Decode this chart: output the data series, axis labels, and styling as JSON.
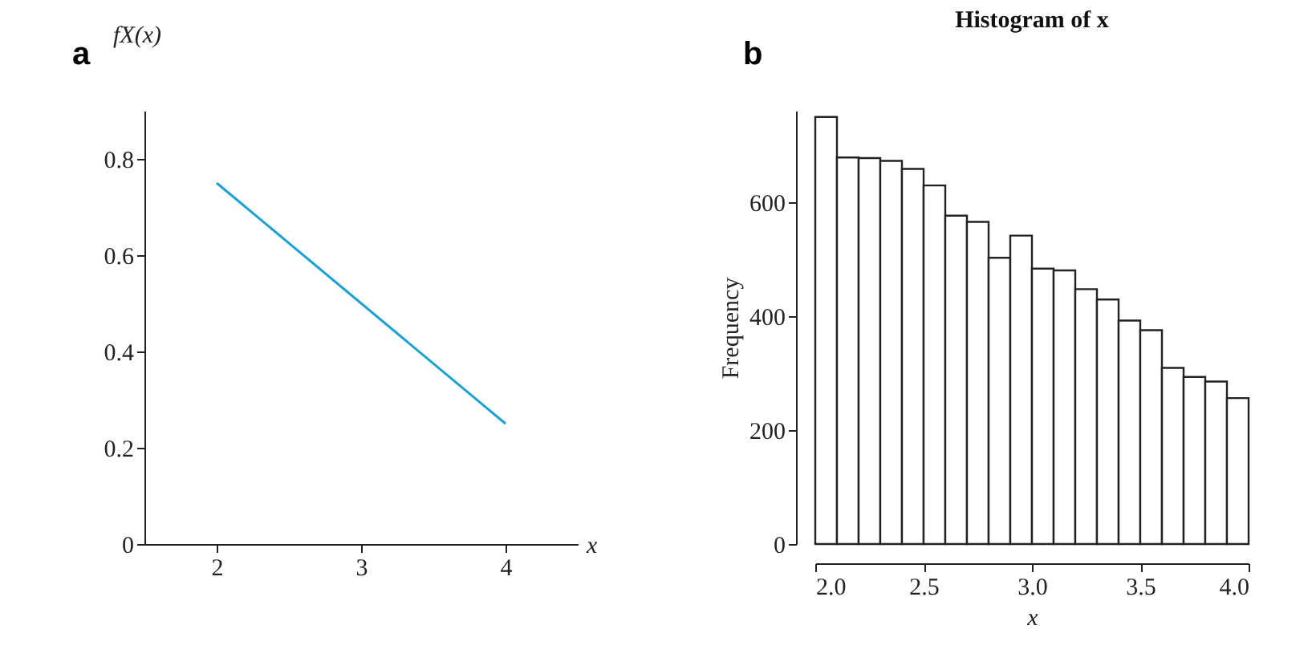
{
  "chart_data": [
    {
      "type": "line",
      "annotations": [
        "a"
      ],
      "xlabel": "x",
      "ylabel": "fX(x)",
      "x": [
        2,
        4
      ],
      "series": [
        {
          "color": "#1ba1cf",
          "values": [
            0.75,
            0.25
          ]
        }
      ],
      "xlim": [
        1.5,
        4.5
      ],
      "xticks": [
        2,
        3,
        4
      ],
      "ylim": [
        0,
        0.9
      ],
      "yticks": [
        0,
        0.2,
        0.4,
        0.6,
        0.8
      ],
      "grid": false,
      "legend": false
    },
    {
      "type": "histogram",
      "annotations": [
        "b"
      ],
      "title": "Histogram of x",
      "xlabel": "x",
      "ylabel": "Frequency",
      "bins": [
        2.0,
        2.1,
        2.2,
        2.3,
        2.4,
        2.5,
        2.6,
        2.7,
        2.8,
        2.9,
        3.0,
        3.1,
        3.2,
        3.3,
        3.4,
        3.5,
        3.6,
        3.7,
        3.8,
        3.9,
        4.0
      ],
      "values": [
        749,
        678,
        677,
        672,
        658,
        629,
        576,
        565,
        502,
        541,
        483,
        480,
        447,
        429,
        392,
        375,
        309,
        293,
        285,
        256
      ],
      "color": "#ffffff",
      "xlim": [
        2,
        4
      ],
      "xticks": [
        {
          "value": 2,
          "label": "2.0"
        },
        {
          "value": 2.5,
          "label": "2.5"
        },
        {
          "value": 3,
          "label": "3.0"
        },
        {
          "value": 3.5,
          "label": "3.5"
        },
        {
          "value": 4,
          "label": "4.0"
        }
      ],
      "ylim": [
        0,
        760
      ],
      "yticks": [
        0,
        200,
        400,
        600
      ],
      "grid": false
    }
  ]
}
